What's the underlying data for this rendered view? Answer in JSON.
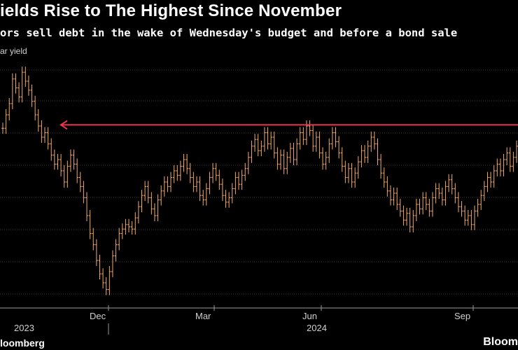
{
  "header": {
    "title": "ields Rise to The Highest Since November",
    "subtitle": "ors sell debt in the wake of Wednesday's budget and before a bond sale",
    "series_label": "ar yield"
  },
  "footer": {
    "source": "loomberg",
    "logo": "Bloom"
  },
  "colors": {
    "background": "#000000",
    "series": "#f4a96b",
    "reference_line": "#e8384f",
    "grid": "#3a3a3a",
    "axis_text": "#cfcfcf"
  },
  "chart_data": {
    "type": "line",
    "style": "ohlc-bars",
    "x_tick_labels": [
      "Dec",
      "Mar",
      "Jun",
      "Sep"
    ],
    "year_labels": [
      "2023",
      "2024"
    ],
    "grid": "horizontal",
    "value_scale": "relative (y-axis values not printed)",
    "series": [
      {
        "values": [
          0.74,
          0.8,
          0.85,
          0.96,
          0.92,
          0.88,
          0.99,
          0.95,
          0.91,
          0.86,
          0.8,
          0.75,
          0.7,
          0.72,
          0.67,
          0.62,
          0.58,
          0.6,
          0.55,
          0.5,
          0.57,
          0.62,
          0.58,
          0.52,
          0.48,
          0.43,
          0.35,
          0.27,
          0.22,
          0.15,
          0.09,
          0.05,
          0.02,
          0.1,
          0.17,
          0.22,
          0.27,
          0.29,
          0.31,
          0.3,
          0.29,
          0.34,
          0.39,
          0.44,
          0.48,
          0.43,
          0.38,
          0.35,
          0.42,
          0.46,
          0.5,
          0.48,
          0.52,
          0.55,
          0.53,
          0.57,
          0.6,
          0.56,
          0.52,
          0.48,
          0.5,
          0.44,
          0.42,
          0.47,
          0.52,
          0.56,
          0.53,
          0.49,
          0.44,
          0.41,
          0.43,
          0.47,
          0.52,
          0.49,
          0.53,
          0.56,
          0.61,
          0.66,
          0.69,
          0.64,
          0.66,
          0.72,
          0.67,
          0.7,
          0.63,
          0.58,
          0.62,
          0.56,
          0.61,
          0.65,
          0.6,
          0.67,
          0.72,
          0.69,
          0.75,
          0.73,
          0.66,
          0.7,
          0.63,
          0.58,
          0.61,
          0.67,
          0.72,
          0.68,
          0.63,
          0.57,
          0.52,
          0.56,
          0.5,
          0.54,
          0.59,
          0.64,
          0.61,
          0.66,
          0.7,
          0.67,
          0.6,
          0.54,
          0.5,
          0.46,
          0.42,
          0.45,
          0.4,
          0.37,
          0.33,
          0.36,
          0.3,
          0.35,
          0.4,
          0.38,
          0.43,
          0.4,
          0.37,
          0.43,
          0.47,
          0.45,
          0.42,
          0.48,
          0.51,
          0.47,
          0.43,
          0.39,
          0.37,
          0.33,
          0.35,
          0.31,
          0.37,
          0.4,
          0.44,
          0.48,
          0.52,
          0.5,
          0.55,
          0.58,
          0.55,
          0.6,
          0.63,
          0.57,
          0.61,
          0.66
        ]
      }
    ],
    "reference_line": {
      "value": 0.755,
      "arrow": "left"
    }
  }
}
